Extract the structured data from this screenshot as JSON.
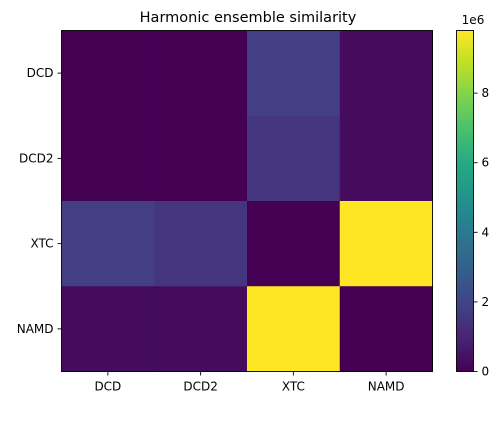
{
  "chart_data": {
    "type": "heatmap",
    "title": "Harmonic ensemble similarity",
    "x_categories": [
      "DCD",
      "DCD2",
      "XTC",
      "NAMD"
    ],
    "y_categories": [
      "DCD",
      "DCD2",
      "XTC",
      "NAMD"
    ],
    "values": [
      [
        0,
        0,
        1800000,
        300000
      ],
      [
        0,
        0,
        1500000,
        300000
      ],
      [
        1800000,
        1500000,
        0,
        9800000
      ],
      [
        300000,
        300000,
        9800000,
        0
      ]
    ],
    "colorscale": "viridis",
    "colorbar": {
      "vmin": 0,
      "vmax": 9800000,
      "ticks": [
        0,
        2,
        4,
        6,
        8
      ],
      "tick_labels": [
        "0",
        "2",
        "4",
        "6",
        "8"
      ],
      "offset_label": "1e6"
    },
    "grid": false
  }
}
